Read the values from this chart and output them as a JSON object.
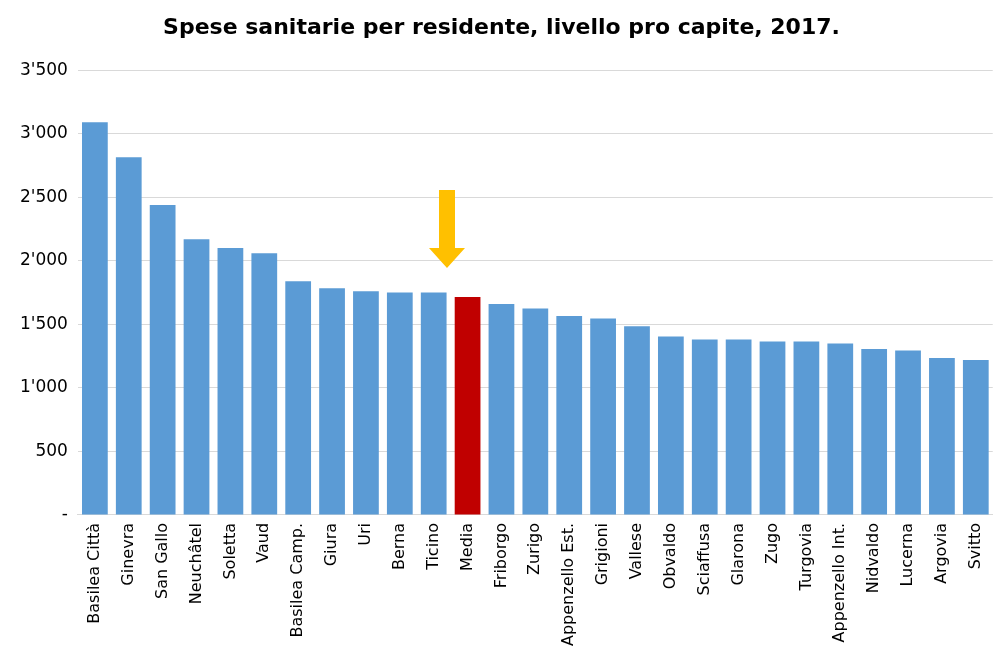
{
  "chart_data": {
    "type": "bar",
    "title": "Spese sanitarie per residente, livello pro capite, 2017.",
    "categories": [
      "Basilea Città",
      "Ginevra",
      "San Gallo",
      "Neuchâtel",
      "Soletta",
      "Vaud",
      "Basilea Camp.",
      "Giura",
      "Uri",
      "Berna",
      "Ticino",
      "Media",
      "Friborgo",
      "Zurigo",
      "Appenzello Est.",
      "Grigioni",
      "Vallese",
      "Obvaldo",
      "Sciaffusa",
      "Glarona",
      "Zugo",
      "Turgovia",
      "Appenzello Int.",
      "Nidvaldo",
      "Lucerna",
      "Argovia",
      "Svitto"
    ],
    "values": [
      3090,
      2815,
      2440,
      2170,
      2100,
      2060,
      1840,
      1785,
      1760,
      1750,
      1750,
      1715,
      1660,
      1625,
      1565,
      1545,
      1485,
      1405,
      1380,
      1380,
      1365,
      1365,
      1350,
      1305,
      1295,
      1235,
      1220
    ],
    "colors": [
      "#5b9bd5",
      "#5b9bd5",
      "#5b9bd5",
      "#5b9bd5",
      "#5b9bd5",
      "#5b9bd5",
      "#5b9bd5",
      "#5b9bd5",
      "#5b9bd5",
      "#5b9bd5",
      "#5b9bd5",
      "#c00000",
      "#5b9bd5",
      "#5b9bd5",
      "#5b9bd5",
      "#5b9bd5",
      "#5b9bd5",
      "#5b9bd5",
      "#5b9bd5",
      "#5b9bd5",
      "#5b9bd5",
      "#5b9bd5",
      "#5b9bd5",
      "#5b9bd5",
      "#5b9bd5",
      "#5b9bd5",
      "#5b9bd5"
    ],
    "ylim": [
      0,
      3500
    ],
    "yticks": [
      {
        "value": 0,
        "label": "-"
      },
      {
        "value": 500,
        "label": "500"
      },
      {
        "value": 1000,
        "label": "1'000"
      },
      {
        "value": 1500,
        "label": "1'500"
      },
      {
        "value": 2000,
        "label": "2'000"
      },
      {
        "value": 2500,
        "label": "2'500"
      },
      {
        "value": 3000,
        "label": "3'000"
      },
      {
        "value": 3500,
        "label": "3'500"
      }
    ],
    "grid": "y"
  }
}
